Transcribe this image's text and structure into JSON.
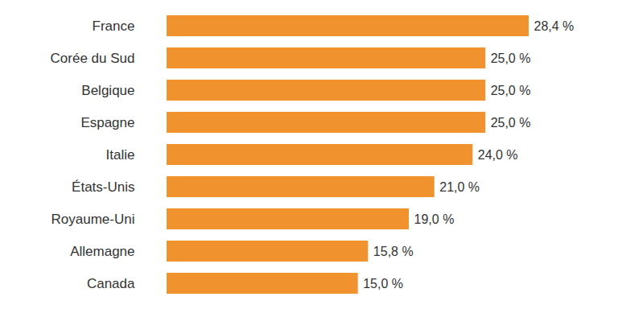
{
  "chart_data": {
    "type": "bar",
    "orientation": "horizontal",
    "categories": [
      "France",
      "Corée du Sud",
      "Belgique",
      "Espagne",
      "Italie",
      "États-Unis",
      "Royaume-Uni",
      "Allemagne",
      "Canada"
    ],
    "values": [
      28.4,
      25.0,
      25.0,
      25.0,
      24.0,
      21.0,
      19.0,
      15.8,
      15.0
    ],
    "value_labels": [
      "28,4 %",
      "25,0 %",
      "25,0 %",
      "25,0 %",
      "24,0 %",
      "21,0 %",
      "19,0 %",
      "15,8 %",
      "15,0 %"
    ],
    "color": "#f0922e",
    "data_labels": true,
    "tick_labels": "y",
    "grid": false
  }
}
